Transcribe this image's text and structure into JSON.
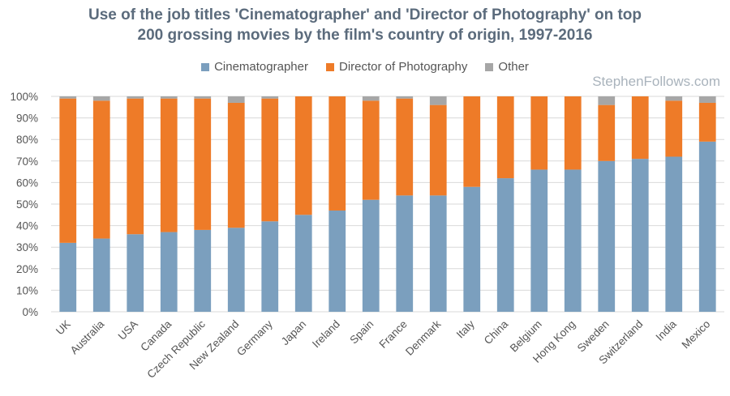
{
  "title": {
    "line1": "Use of the job titles 'Cinematographer' and 'Director of Photography' on top",
    "line2": "200 grossing movies by the film's country of origin, 1997-2016"
  },
  "watermark": "StephenFollows.com",
  "colors": {
    "cinematographer": "#7b9fbe",
    "director_of_photography": "#ee7b28",
    "other": "#a6a6a6",
    "gridline": "#d9d9d9",
    "title": "#5b6b7c"
  },
  "chart_data": {
    "type": "bar",
    "stacked": true,
    "percent": true,
    "ylim": [
      0,
      100
    ],
    "yticks": [
      "0%",
      "10%",
      "20%",
      "30%",
      "40%",
      "50%",
      "60%",
      "70%",
      "80%",
      "90%",
      "100%"
    ],
    "grid": true,
    "legend_position": "top",
    "categories": [
      "UK",
      "Australia",
      "USA",
      "Canada",
      "Czech Republic",
      "New Zealand",
      "Germany",
      "Japan",
      "Ireland",
      "Spain",
      "France",
      "Denmark",
      "Italy",
      "China",
      "Belgium",
      "Hong Kong",
      "Sweden",
      "Switzerland",
      "India",
      "Mexico"
    ],
    "series": [
      {
        "name": "Cinematographer",
        "values": [
          32,
          34,
          36,
          37,
          38,
          39,
          42,
          45,
          47,
          52,
          54,
          54,
          58,
          62,
          66,
          66,
          70,
          71,
          72,
          79
        ]
      },
      {
        "name": "Director of Photography",
        "values": [
          67,
          64,
          63,
          62,
          61,
          58,
          57,
          55,
          53,
          46,
          45,
          42,
          42,
          38,
          34,
          34,
          26,
          29,
          26,
          18
        ]
      },
      {
        "name": "Other",
        "values": [
          1,
          2,
          1,
          1,
          1,
          3,
          1,
          0,
          0,
          2,
          1,
          4,
          0,
          0,
          0,
          0,
          4,
          0,
          2,
          3
        ]
      }
    ]
  }
}
